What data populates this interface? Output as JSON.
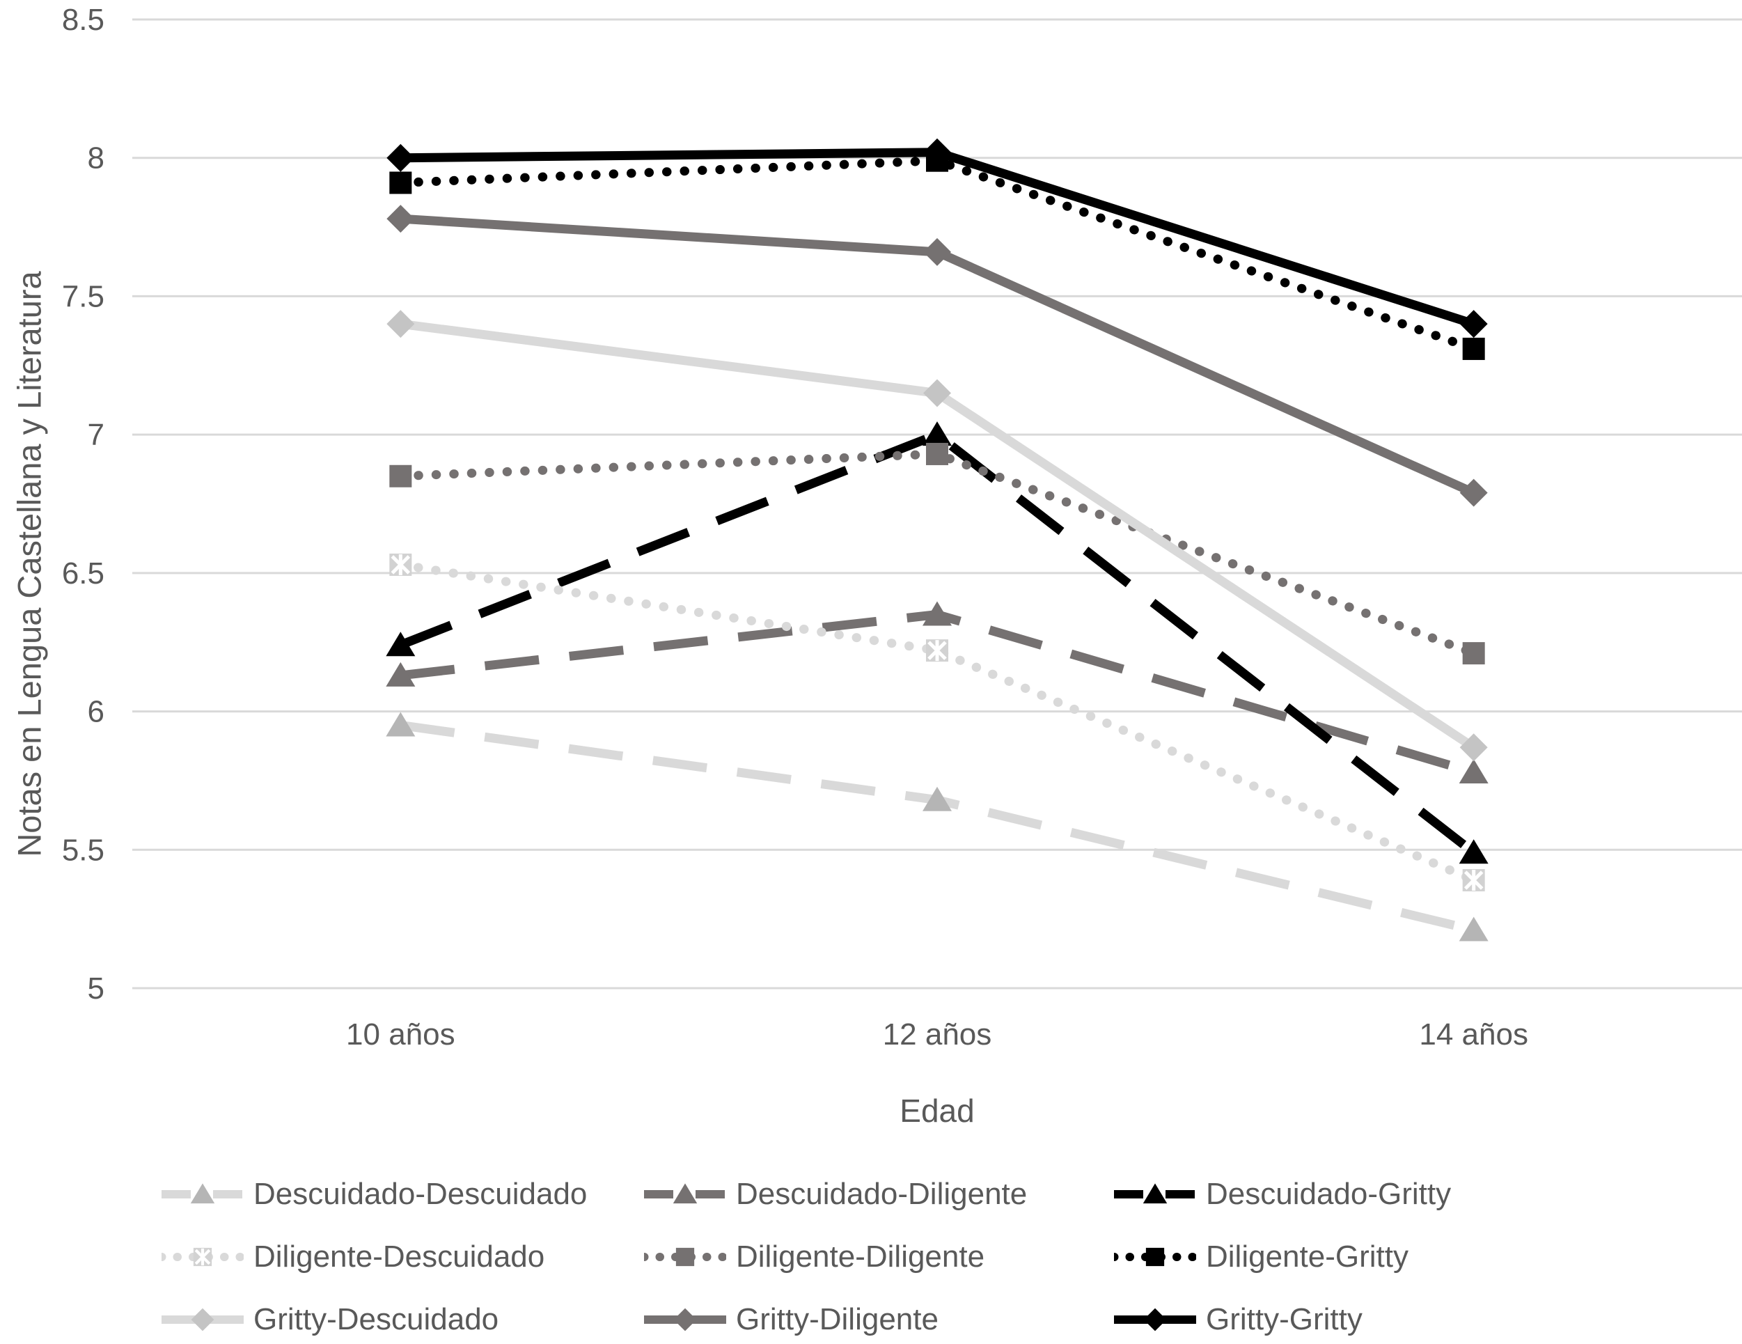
{
  "chart_data": {
    "type": "line",
    "title": "",
    "xlabel": "Edad",
    "ylabel": "Notas en Lengua Castellana y Literatura",
    "categories": [
      "10 años",
      "12 años",
      "14 años"
    ],
    "ylim": [
      5,
      8.5
    ],
    "yticks": [
      8.5,
      8,
      7.5,
      7,
      6.5,
      6,
      5.5,
      5
    ],
    "ytick_labels": [
      "8.5",
      "8",
      "7.5",
      "7",
      "6.5",
      "6",
      "5.5",
      "5"
    ],
    "grid": "horizontal-only",
    "legend_position": "bottom",
    "axis_text_color": "#595959",
    "gridline_color": "#d9d9d9",
    "series": [
      {
        "name": "Descuidado-Descuidado",
        "values": [
          5.95,
          5.68,
          5.21
        ],
        "line_color": "#d9d9d9",
        "marker_color": "#b5b5b5",
        "dash": "dashed",
        "marker": "triangle"
      },
      {
        "name": "Descuidado-Diligente",
        "values": [
          6.13,
          6.35,
          5.78
        ],
        "line_color": "#757171",
        "marker_color": "#757171",
        "dash": "dashed",
        "marker": "triangle"
      },
      {
        "name": "Descuidado-Gritty",
        "values": [
          6.24,
          7.0,
          5.49
        ],
        "line_color": "#000000",
        "marker_color": "#000000",
        "dash": "dashed",
        "marker": "triangle"
      },
      {
        "name": "Diligente-Descuidado",
        "values": [
          6.53,
          6.22,
          5.39
        ],
        "line_color": "#d9d9d9",
        "marker_color": "#d2d2d2",
        "dash": "dotted",
        "marker": "star-square"
      },
      {
        "name": "Diligente-Diligente",
        "values": [
          6.85,
          6.93,
          6.21
        ],
        "line_color": "#757171",
        "marker_color": "#757171",
        "dash": "dotted",
        "marker": "square"
      },
      {
        "name": "Diligente-Gritty",
        "values": [
          7.91,
          7.99,
          7.31
        ],
        "line_color": "#000000",
        "marker_color": "#000000",
        "dash": "dotted",
        "marker": "square"
      },
      {
        "name": "Gritty-Descuidado",
        "values": [
          7.4,
          7.15,
          5.87
        ],
        "line_color": "#d9d9d9",
        "marker_color": "#c4c4c4",
        "dash": "solid",
        "marker": "diamond"
      },
      {
        "name": "Gritty-Diligente",
        "values": [
          7.78,
          7.66,
          6.79
        ],
        "line_color": "#757171",
        "marker_color": "#757171",
        "dash": "solid",
        "marker": "diamond"
      },
      {
        "name": "Gritty-Gritty",
        "values": [
          8.0,
          8.02,
          7.4
        ],
        "line_color": "#000000",
        "marker_color": "#000000",
        "dash": "solid",
        "marker": "diamond"
      }
    ],
    "legend_rows": [
      [
        "Descuidado-Descuidado",
        "Descuidado-Diligente",
        "Descuidado-Gritty"
      ],
      [
        "Diligente-Descuidado",
        "Diligente-Diligente",
        "Diligente-Gritty"
      ],
      [
        "Gritty-Descuidado",
        "Gritty-Diligente",
        "Gritty-Gritty"
      ]
    ]
  }
}
